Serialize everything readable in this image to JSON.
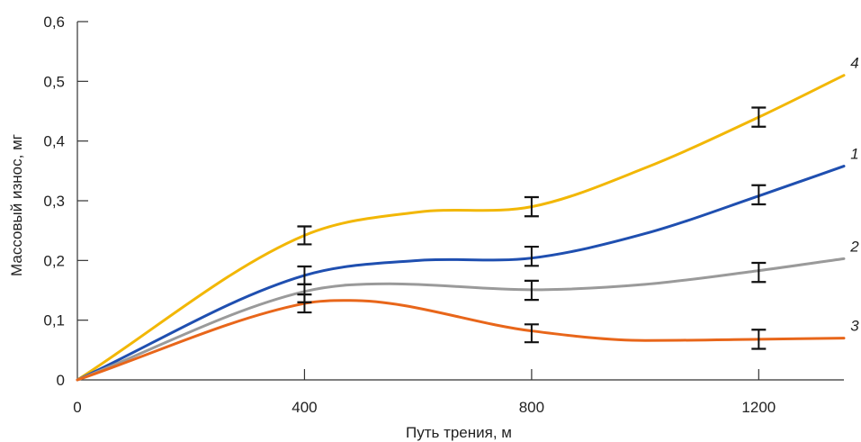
{
  "chart_data": {
    "type": "line",
    "xlabel": "Путь трения, м",
    "ylabel": "Массовый износ, мг",
    "xlim": [
      0,
      1350
    ],
    "ylim": [
      0,
      0.6
    ],
    "x_ticks": [
      0,
      400,
      800,
      1200
    ],
    "x_tick_labels": [
      "0",
      "400",
      "800",
      "1200"
    ],
    "y_ticks": [
      0,
      0.1,
      0.2,
      0.3,
      0.4,
      0.5,
      0.6
    ],
    "y_tick_labels": [
      "0",
      "0,1",
      "0,2",
      "0,3",
      "0,4",
      "0,5",
      "0,6"
    ],
    "grid": false,
    "series": [
      {
        "name": "4",
        "color": "#F2B705",
        "x": [
          0,
          400,
          600,
          800,
          1000,
          1200,
          1350
        ],
        "y": [
          0,
          0.242,
          0.281,
          0.29,
          0.355,
          0.44,
          0.51
        ],
        "error_bars": [
          {
            "x": 400,
            "y": 0.242,
            "err": 0.015
          },
          {
            "x": 800,
            "y": 0.29,
            "err": 0.016
          },
          {
            "x": 1200,
            "y": 0.44,
            "err": 0.016
          }
        ]
      },
      {
        "name": "1",
        "color": "#1F4FB0",
        "x": [
          0,
          400,
          600,
          800,
          1000,
          1200,
          1350
        ],
        "y": [
          0,
          0.175,
          0.2,
          0.204,
          0.245,
          0.308,
          0.358
        ],
        "error_bars": [
          {
            "x": 400,
            "y": 0.175,
            "err": 0.015
          },
          {
            "x": 800,
            "y": 0.207,
            "err": 0.016
          },
          {
            "x": 1200,
            "y": 0.31,
            "err": 0.016
          }
        ]
      },
      {
        "name": "2",
        "color": "#9A9A9A",
        "x": [
          0,
          400,
          550,
          800,
          1000,
          1200,
          1350
        ],
        "y": [
          0,
          0.148,
          0.161,
          0.151,
          0.16,
          0.183,
          0.203
        ],
        "error_bars": [
          {
            "x": 400,
            "y": 0.145,
            "err": 0.015
          },
          {
            "x": 800,
            "y": 0.15,
            "err": 0.016
          },
          {
            "x": 1200,
            "y": 0.18,
            "err": 0.016
          }
        ]
      },
      {
        "name": "3",
        "color": "#E8661A",
        "x": [
          0,
          400,
          480,
          800,
          1000,
          1200,
          1350
        ],
        "y": [
          0,
          0.128,
          0.133,
          0.082,
          0.066,
          0.068,
          0.07
        ],
        "error_bars": [
          {
            "x": 400,
            "y": 0.128,
            "err": 0.015
          },
          {
            "x": 800,
            "y": 0.078,
            "err": 0.015
          },
          {
            "x": 1200,
            "y": 0.068,
            "err": 0.016
          }
        ]
      }
    ]
  }
}
